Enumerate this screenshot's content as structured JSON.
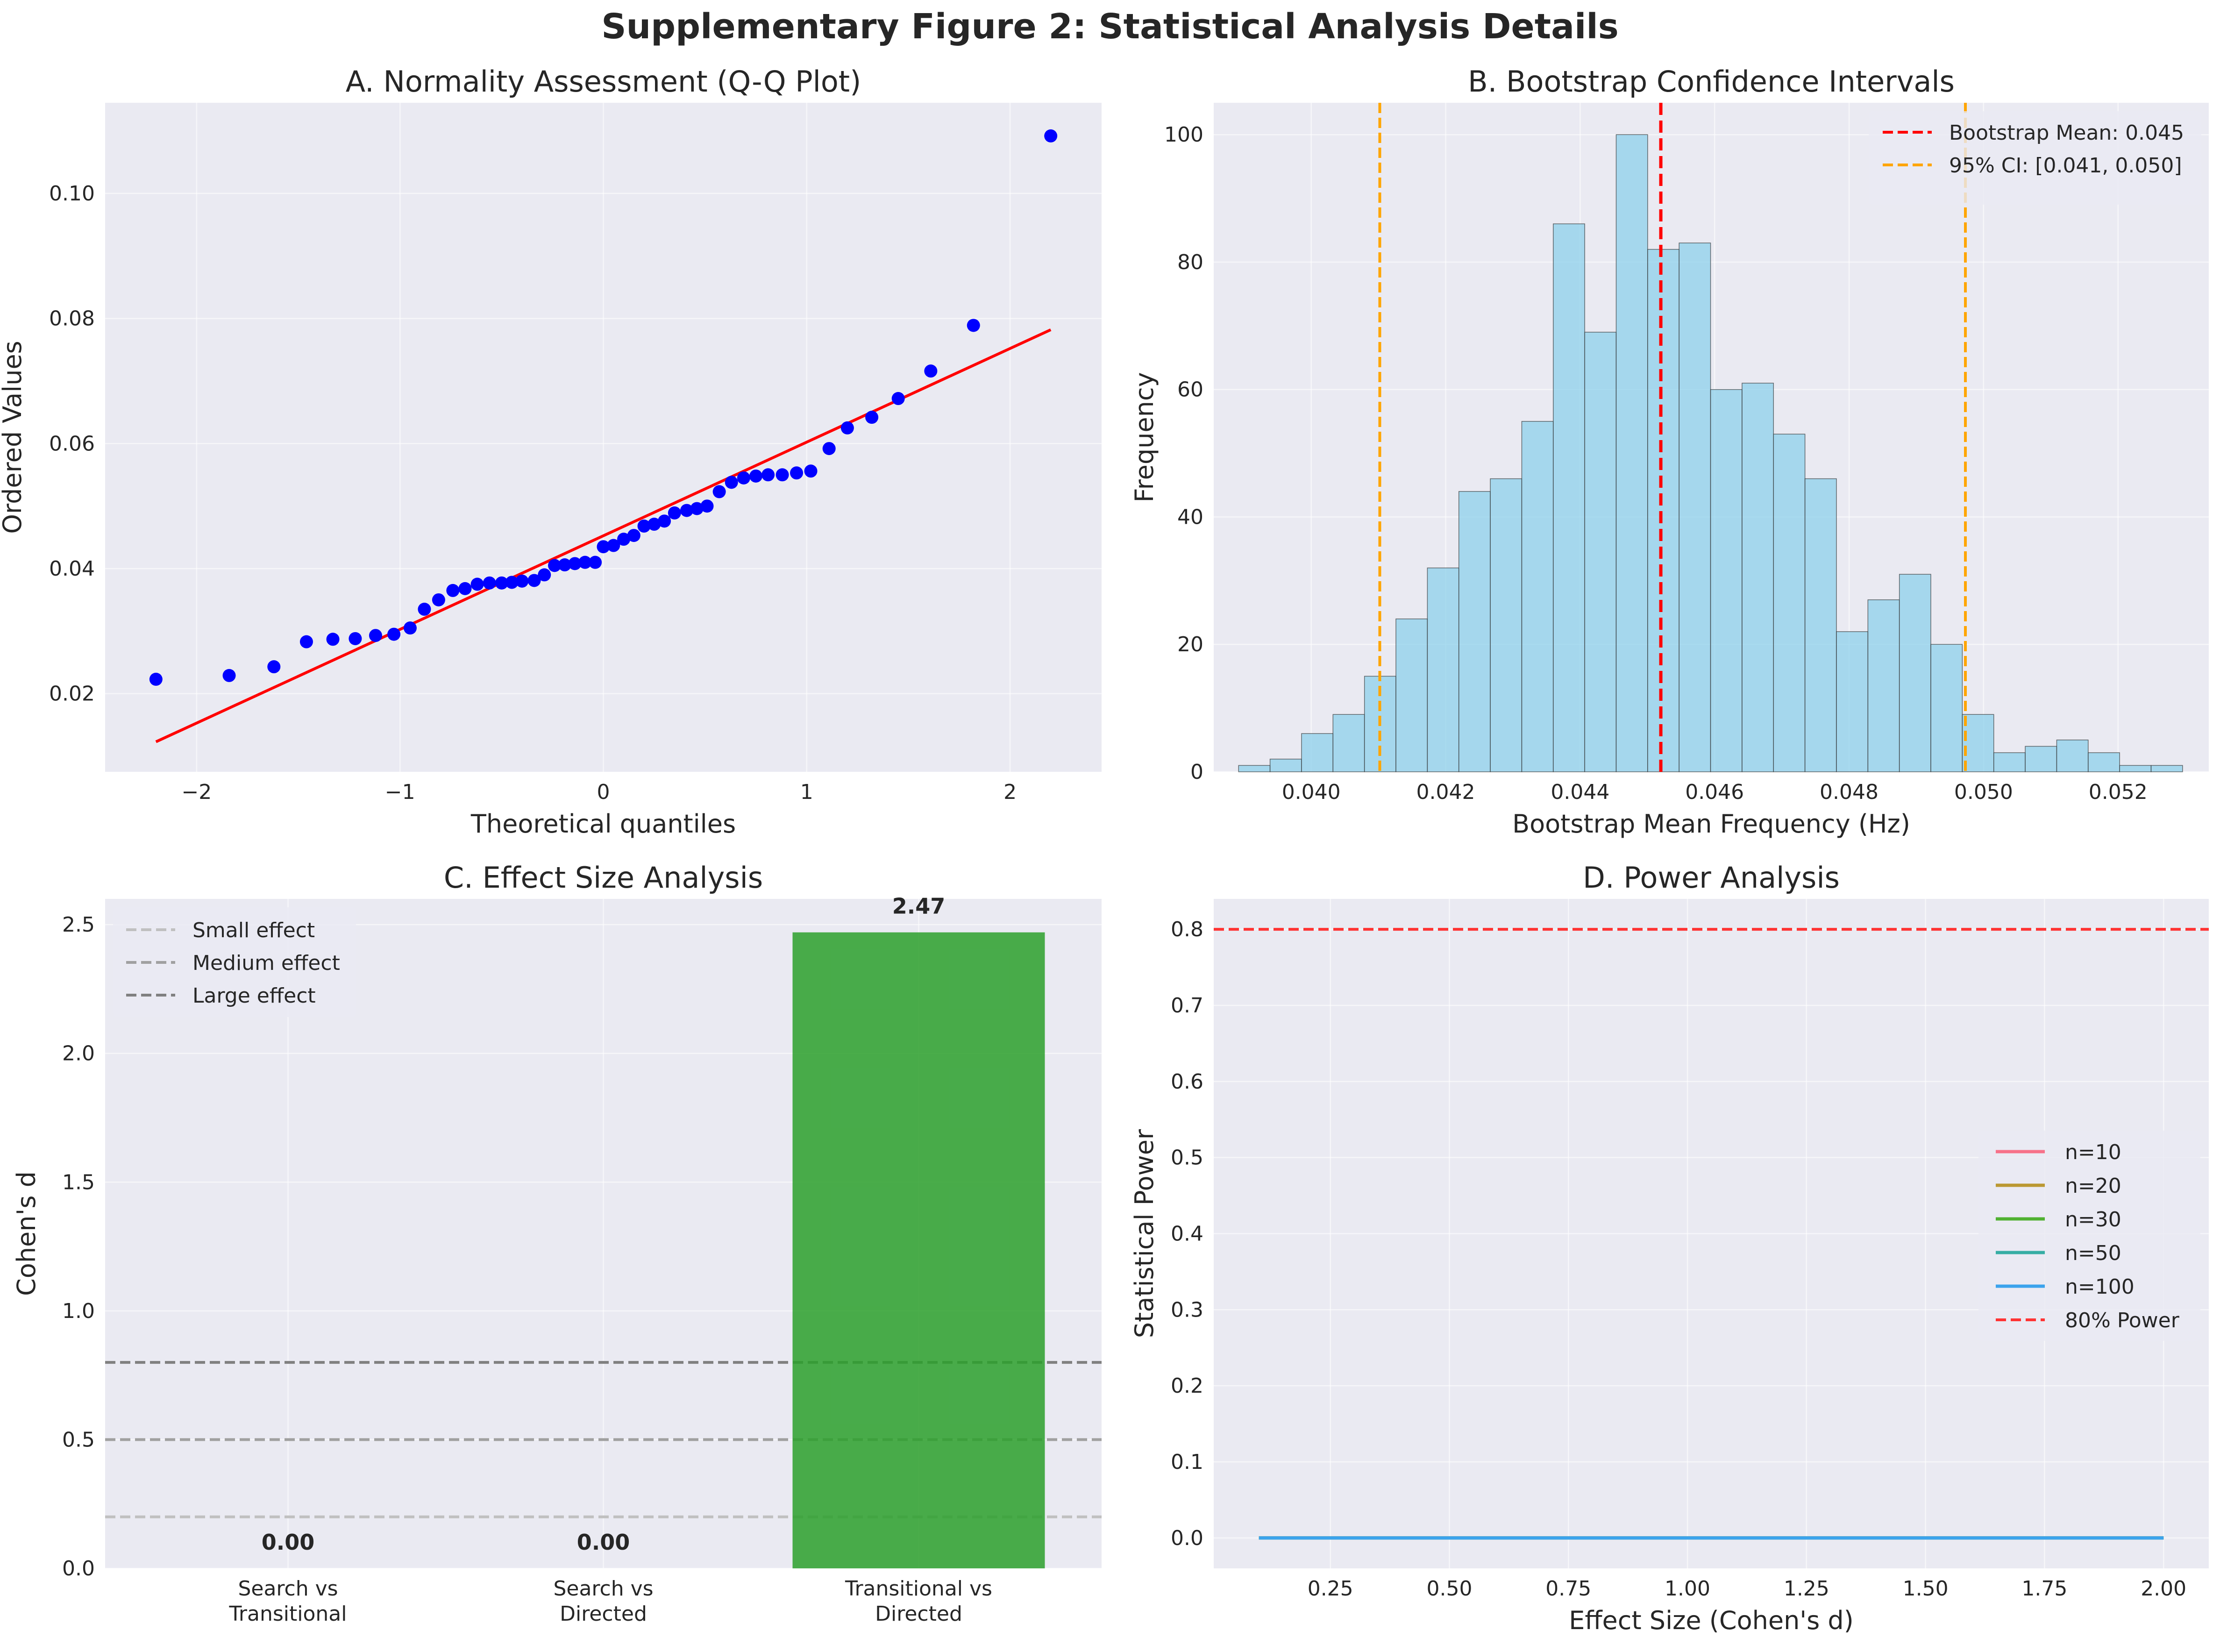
{
  "figure": {
    "title": "Supplementary Figure 2: Statistical Analysis Details"
  },
  "colors": {
    "panel_bg": "#eaeaf2",
    "grid": "#ffffff",
    "qq_points": "#0000ff",
    "qq_line": "#ff0000",
    "hist_fill": "#87ceeb",
    "hist_edge": "#333333",
    "mean_line": "#ff0000",
    "ci_line": "#ffa500",
    "bar_green": "#2ca02c",
    "effect_small": "#c0c0c0",
    "effect_medium": "#a0a0a0",
    "effect_large": "#808080",
    "power_ref": "#ff3333"
  },
  "chart_data": [
    {
      "id": "A",
      "type": "scatter",
      "title": "A. Normality Assessment (Q-Q Plot)",
      "xlabel": "Theoretical quantiles",
      "ylabel": "Ordered Values",
      "xlim": [
        -2.45,
        2.45
      ],
      "ylim": [
        0.0075,
        0.1145
      ],
      "xticks": [
        -2,
        -1,
        0,
        1,
        2
      ],
      "xtick_labels": [
        "−2",
        "−1",
        "0",
        "1",
        "2"
      ],
      "yticks": [
        0.02,
        0.04,
        0.06,
        0.08,
        0.1
      ],
      "ytick_labels": [
        "0.02",
        "0.04",
        "0.06",
        "0.08",
        "0.10"
      ],
      "grid": true,
      "points_x": [
        -2.2,
        -1.84,
        -1.62,
        -1.46,
        -1.33,
        -1.22,
        -1.12,
        -1.03,
        -0.95,
        -0.88,
        -0.81,
        -0.74,
        -0.68,
        -0.62,
        -0.56,
        -0.5,
        -0.45,
        -0.4,
        -0.34,
        -0.29,
        -0.24,
        -0.19,
        -0.14,
        -0.09,
        -0.04,
        0.0,
        0.05,
        0.1,
        0.15,
        0.2,
        0.25,
        0.3,
        0.35,
        0.41,
        0.46,
        0.51,
        0.57,
        0.63,
        0.69,
        0.75,
        0.81,
        0.88,
        0.95,
        1.02,
        1.11,
        1.2,
        1.32,
        1.45,
        1.61,
        1.82,
        2.2
      ],
      "points_y": [
        0.0223,
        0.0229,
        0.0243,
        0.0283,
        0.0287,
        0.0288,
        0.0293,
        0.0295,
        0.0305,
        0.0335,
        0.035,
        0.0365,
        0.0368,
        0.0375,
        0.0377,
        0.0377,
        0.0378,
        0.038,
        0.0381,
        0.039,
        0.0405,
        0.0406,
        0.0408,
        0.041,
        0.041,
        0.0435,
        0.0437,
        0.0447,
        0.0453,
        0.0468,
        0.0471,
        0.0476,
        0.0489,
        0.0493,
        0.0496,
        0.05,
        0.0523,
        0.0538,
        0.0545,
        0.0548,
        0.055,
        0.055,
        0.0553,
        0.0556,
        0.0592,
        0.0625,
        0.0642,
        0.0672,
        0.0716,
        0.0789,
        0.1092
      ],
      "fit_line": {
        "x": [
          -2.2,
          2.2
        ],
        "y": [
          0.0123,
          0.0782
        ]
      }
    },
    {
      "id": "B",
      "type": "bar",
      "title": "B. Bootstrap Confidence Intervals",
      "xlabel": "Bootstrap Mean Frequency (Hz)",
      "ylabel": "Frequency",
      "xlim": [
        0.03855,
        0.05335
      ],
      "ylim": [
        0,
        105
      ],
      "xticks": [
        0.04,
        0.042,
        0.044,
        0.046,
        0.048,
        0.05,
        0.052
      ],
      "xtick_labels": [
        "0.040",
        "0.042",
        "0.044",
        "0.046",
        "0.048",
        "0.050",
        "0.052"
      ],
      "yticks": [
        0,
        20,
        40,
        60,
        80,
        100
      ],
      "ytick_labels": [
        "0",
        "20",
        "40",
        "60",
        "80",
        "100"
      ],
      "grid": true,
      "bin_start": 0.03892,
      "bin_width": 0.000468,
      "counts": [
        1,
        2,
        6,
        9,
        15,
        24,
        32,
        44,
        46,
        55,
        86,
        69,
        100,
        82,
        83,
        60,
        61,
        53,
        46,
        22,
        27,
        31,
        20,
        9,
        3,
        4,
        5,
        3,
        1,
        1
      ],
      "mean": 0.0452,
      "ci": [
        0.04102,
        0.04973
      ],
      "legend": [
        "Bootstrap Mean: 0.045",
        "95% CI: [0.041, 0.050]"
      ],
      "legend_position": "top-right"
    },
    {
      "id": "C",
      "type": "bar",
      "title": "C. Effect Size Analysis",
      "ylabel": "Cohen's d",
      "categories": [
        [
          "Search vs",
          "Transitional"
        ],
        [
          "Search vs",
          "Directed"
        ],
        [
          "Transitional vs",
          "Directed"
        ]
      ],
      "values": [
        0.0,
        0.0,
        2.47
      ],
      "value_labels": [
        "0.00",
        "0.00",
        "2.47"
      ],
      "ylim": [
        0,
        2.6
      ],
      "yticks": [
        0.0,
        0.5,
        1.0,
        1.5,
        2.0,
        2.5
      ],
      "ytick_labels": [
        "0.0",
        "0.5",
        "1.0",
        "1.5",
        "2.0",
        "2.5"
      ],
      "grid": true,
      "reference_lines": [
        {
          "value": 0.2,
          "label": "Small effect"
        },
        {
          "value": 0.5,
          "label": "Medium effect"
        },
        {
          "value": 0.8,
          "label": "Large effect"
        }
      ],
      "legend_position": "top-left"
    },
    {
      "id": "D",
      "type": "line",
      "title": "D. Power Analysis",
      "xlabel": "Effect Size (Cohen's d)",
      "ylabel": "Statistical Power",
      "xlim": [
        0.005,
        2.095
      ],
      "ylim": [
        -0.04,
        0.84
      ],
      "xticks": [
        0.25,
        0.5,
        0.75,
        1.0,
        1.25,
        1.5,
        1.75,
        2.0
      ],
      "xtick_labels": [
        "0.25",
        "0.50",
        "0.75",
        "1.00",
        "1.25",
        "1.50",
        "1.75",
        "2.00"
      ],
      "yticks": [
        0.0,
        0.1,
        0.2,
        0.3,
        0.4,
        0.5,
        0.6,
        0.7,
        0.8
      ],
      "ytick_labels": [
        "0.0",
        "0.1",
        "0.2",
        "0.3",
        "0.4",
        "0.5",
        "0.6",
        "0.7",
        "0.8"
      ],
      "grid": true,
      "x": [
        0.1,
        2.0
      ],
      "series": [
        {
          "name": "n=10",
          "color": "#f77189",
          "values": [
            0.0,
            0.0
          ]
        },
        {
          "name": "n=20",
          "color": "#bb9832",
          "values": [
            0.0,
            0.0
          ]
        },
        {
          "name": "n=30",
          "color": "#50b131",
          "values": [
            0.0,
            0.0
          ]
        },
        {
          "name": "n=50",
          "color": "#36ada4",
          "values": [
            0.0,
            0.0
          ]
        },
        {
          "name": "n=100",
          "color": "#3ba3ec",
          "values": [
            0.0,
            0.0
          ]
        }
      ],
      "reference_line": {
        "value": 0.8,
        "label": "80% Power"
      },
      "legend_position": "center-right"
    }
  ]
}
